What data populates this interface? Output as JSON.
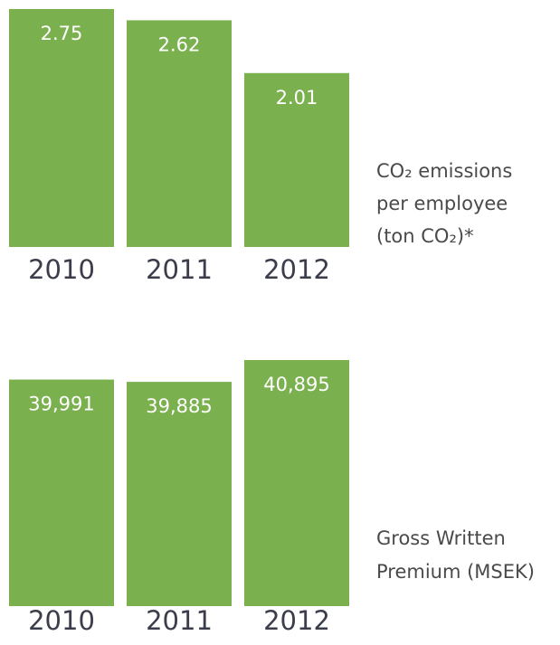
{
  "chart_data": [
    {
      "type": "bar",
      "label": [
        "CO₂ emissions",
        "per employee",
        "(ton CO₂)*"
      ],
      "categories": [
        "2010",
        "2011",
        "2012"
      ],
      "values": [
        2.75,
        2.62,
        2.01
      ],
      "color": "#7bb04f",
      "ylim": [
        0,
        2.75
      ]
    },
    {
      "type": "bar",
      "label": [
        "Gross Written",
        "Premium (MSEK)"
      ],
      "categories": [
        "2010",
        "2011",
        "2012"
      ],
      "values": [
        39991,
        39885,
        40895
      ],
      "value_labels": [
        "39,991",
        "39,885",
        "40,895"
      ],
      "color": "#7bb04f",
      "ylim": [
        29500,
        40895
      ]
    }
  ]
}
